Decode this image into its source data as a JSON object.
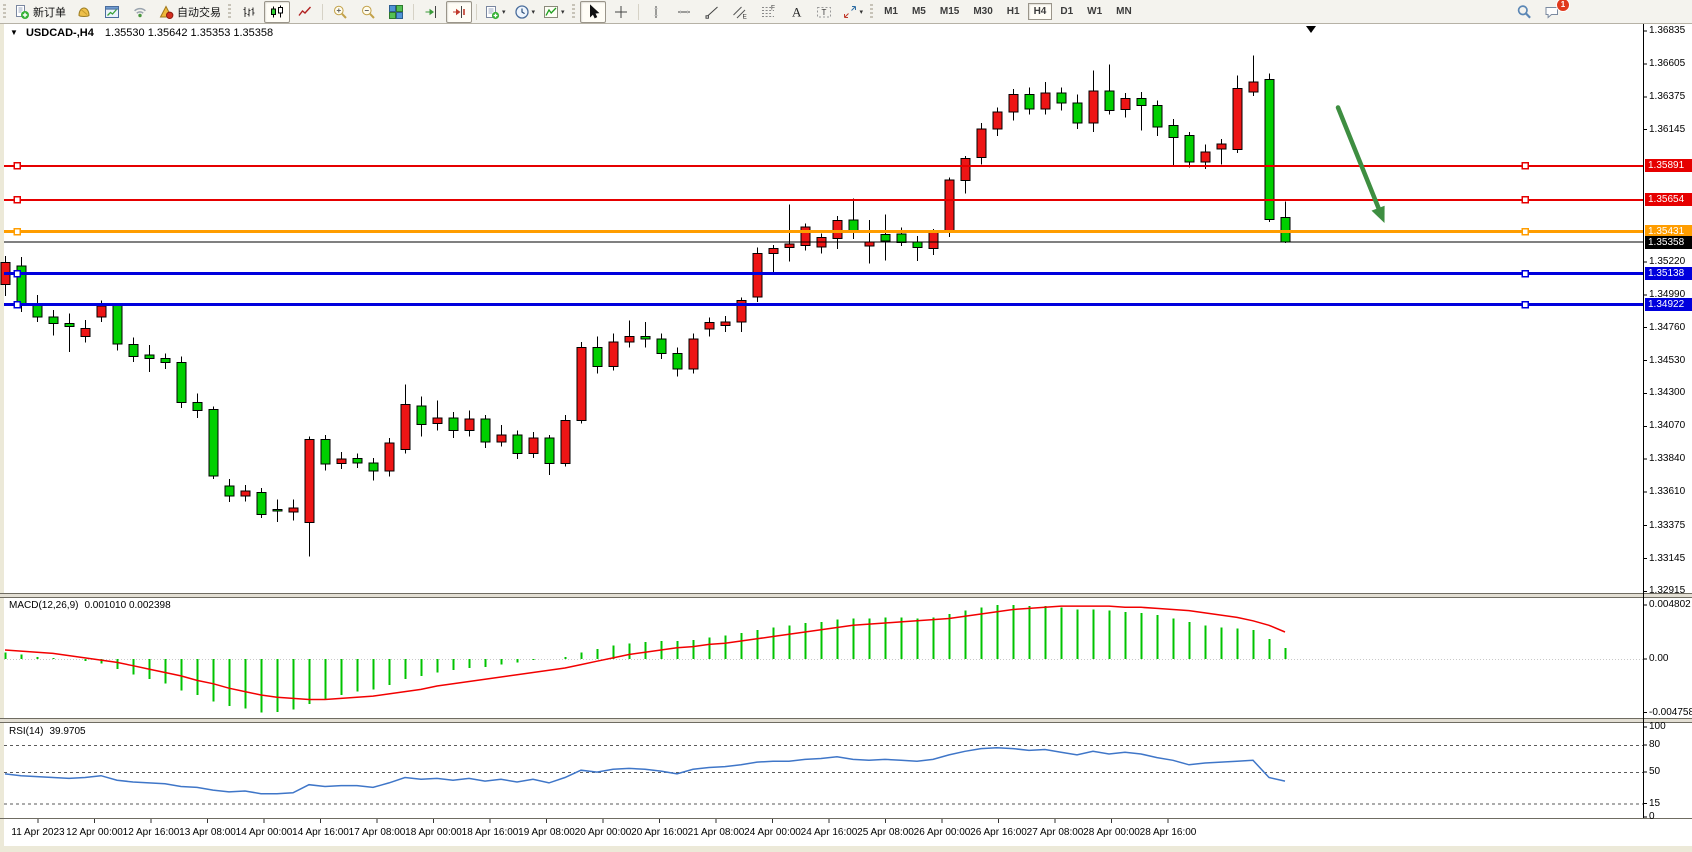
{
  "toolbar": {
    "groups": [
      {
        "items": [
          {
            "name": "new-order-button",
            "icon": "new-order",
            "label": "新订单"
          },
          {
            "name": "market-watch-button",
            "icon": "market-watch"
          },
          {
            "name": "new-chart-button",
            "icon": "new-chart"
          },
          {
            "name": "signals-button",
            "icon": "signals"
          },
          {
            "name": "autotrading-button",
            "icon": "autotrade",
            "label": "自动交易"
          }
        ]
      },
      {
        "items": [
          {
            "name": "bar-chart-button",
            "icon": "bars"
          },
          {
            "name": "candle-chart-button",
            "icon": "candles",
            "pressed": true
          },
          {
            "name": "line-chart-button",
            "icon": "line-chart"
          }
        ]
      },
      {
        "items": [
          {
            "name": "zoom-in-button",
            "icon": "zoom-in"
          },
          {
            "name": "zoom-out-button",
            "icon": "zoom-out"
          },
          {
            "name": "tile-windows-button",
            "icon": "tile"
          }
        ]
      },
      {
        "items": [
          {
            "name": "auto-scroll-button",
            "icon": "auto-scroll"
          },
          {
            "name": "chart-shift-button",
            "icon": "chart-shift",
            "pressed": true
          }
        ]
      },
      {
        "items": [
          {
            "name": "new-order-menu-button",
            "icon": "order-dd",
            "caret": true
          },
          {
            "name": "periods-menu-button",
            "icon": "periods",
            "caret": true
          },
          {
            "name": "indicators-menu-button",
            "icon": "indicators",
            "caret": true
          }
        ]
      },
      {
        "items": [
          {
            "name": "cursor-button",
            "icon": "cursor",
            "pressed": true
          },
          {
            "name": "crosshair-button",
            "icon": "crosshair"
          }
        ]
      },
      {
        "items": [
          {
            "name": "vertical-line-button",
            "icon": "vline"
          },
          {
            "name": "horizontal-line-button",
            "icon": "hline"
          },
          {
            "name": "trendline-button",
            "icon": "trendline"
          },
          {
            "name": "equidistant-channel-button",
            "icon": "channel"
          },
          {
            "name": "fibonacci-button",
            "icon": "fibo"
          },
          {
            "name": "text-button",
            "icon": "text-tool"
          },
          {
            "name": "text-label-button",
            "icon": "label-tool"
          },
          {
            "name": "arrows-button",
            "icon": "shapes",
            "caret": true
          }
        ]
      }
    ],
    "timeframes": [
      {
        "label": "M1"
      },
      {
        "label": "M5"
      },
      {
        "label": "M15"
      },
      {
        "label": "M30"
      },
      {
        "label": "H1"
      },
      {
        "label": "H4",
        "active": true
      },
      {
        "label": "D1"
      },
      {
        "label": "W1"
      },
      {
        "label": "MN"
      }
    ],
    "right": [
      {
        "name": "search-button",
        "icon": "search"
      },
      {
        "name": "notifications-button",
        "icon": "chat",
        "badge": "1"
      }
    ]
  },
  "chart": {
    "title": {
      "symbol": "USDCAD-,H4",
      "open": "1.35530",
      "high": "1.35642",
      "low": "1.35353",
      "close": "1.35358"
    }
  },
  "indicators": {
    "macd": {
      "label": "MACD(12,26,9)",
      "main_value": "0.001010",
      "signal_value": "0.002398"
    },
    "rsi": {
      "label": "RSI(14)",
      "value": "39.9705"
    }
  },
  "axes": {
    "price_ticks": [
      "1.36835",
      "1.36605",
      "1.36375",
      "1.36145",
      "1.35220",
      "1.34990",
      "1.34760",
      "1.34530",
      "1.34300",
      "1.34070",
      "1.33840",
      "1.33610",
      "1.33375",
      "1.33145",
      "1.32915"
    ],
    "price_tags": [
      {
        "text": "1.35891",
        "color": "#e60000"
      },
      {
        "text": "1.35654",
        "color": "#e60000"
      },
      {
        "text": "1.35431",
        "color": "#ff9d00"
      },
      {
        "text": "1.35358",
        "color": "#000000"
      },
      {
        "text": "1.35138",
        "color": "#0000dd"
      },
      {
        "text": "1.34922",
        "color": "#0000dd"
      }
    ],
    "macd_ticks": [
      {
        "text": "0.004802",
        "v": 0.004802
      },
      {
        "text": "0.00",
        "v": 0
      },
      {
        "text": "-0.004758",
        "v": -0.004758
      }
    ],
    "rsi_ticks": [
      {
        "text": "100",
        "v": 100
      },
      {
        "text": "80",
        "v": 80
      },
      {
        "text": "50",
        "v": 50
      },
      {
        "text": "15",
        "v": 15
      },
      {
        "text": "0",
        "v": 0
      }
    ],
    "time_labels": [
      "11 Apr 2023",
      "12 Apr 00:00",
      "12 Apr 16:00",
      "13 Apr 08:00",
      "14 Apr 00:00",
      "14 Apr 16:00",
      "17 Apr 08:00",
      "18 Apr 00:00",
      "18 Apr 16:00",
      "19 Apr 08:00",
      "20 Apr 00:00",
      "20 Apr 16:00",
      "21 Apr 08:00",
      "24 Apr 00:00",
      "24 Apr 16:00",
      "25 Apr 08:00",
      "26 Apr 00:00",
      "26 Apr 16:00",
      "27 Apr 08:00",
      "28 Apr 00:00",
      "28 Apr 16:00"
    ]
  },
  "chart_data": {
    "type": "candlestick",
    "symbol": "USDCAD",
    "timeframe": "H4",
    "title": "USDCAD-,H4  1.35530 1.35642 1.35353 1.35358",
    "up_color": "#ee1515",
    "down_color": "#00cf00",
    "ylim": [
      1.32915,
      1.36835
    ],
    "x_time_labels": [
      "11 Apr 2023",
      "12 Apr 00:00",
      "12 Apr 16:00",
      "13 Apr 08:00",
      "14 Apr 00:00",
      "14 Apr 16:00",
      "17 Apr 08:00",
      "18 Apr 00:00",
      "18 Apr 16:00",
      "19 Apr 08:00",
      "20 Apr 00:00",
      "20 Apr 16:00",
      "21 Apr 08:00",
      "24 Apr 00:00",
      "24 Apr 16:00",
      "25 Apr 08:00",
      "26 Apr 00:00",
      "26 Apr 16:00",
      "27 Apr 08:00",
      "28 Apr 00:00",
      "28 Apr 16:00"
    ],
    "candles_ohlc": [
      [
        1.35063,
        1.3526,
        1.3498,
        1.35217
      ],
      [
        1.3519,
        1.35255,
        1.3487,
        1.34925
      ],
      [
        1.3492,
        1.3499,
        1.348,
        1.34835
      ],
      [
        1.34835,
        1.34885,
        1.34705,
        1.3479
      ],
      [
        1.3479,
        1.3486,
        1.3459,
        1.34768
      ],
      [
        1.347,
        1.34815,
        1.34655,
        1.34755
      ],
      [
        1.34835,
        1.3495,
        1.348,
        1.34912
      ],
      [
        1.34915,
        1.3493,
        1.346,
        1.34645
      ],
      [
        1.34643,
        1.3469,
        1.3452,
        1.3456
      ],
      [
        1.3457,
        1.3464,
        1.3445,
        1.34545
      ],
      [
        1.34545,
        1.3458,
        1.3447,
        1.34515
      ],
      [
        1.34518,
        1.3456,
        1.342,
        1.34238
      ],
      [
        1.34238,
        1.343,
        1.3413,
        1.3418
      ],
      [
        1.34189,
        1.3421,
        1.337,
        1.33723
      ],
      [
        1.33652,
        1.337,
        1.3354,
        1.33582
      ],
      [
        1.33582,
        1.3366,
        1.33545,
        1.33617
      ],
      [
        1.33608,
        1.3364,
        1.3343,
        1.33454
      ],
      [
        1.3349,
        1.3356,
        1.334,
        1.3348
      ],
      [
        1.3347,
        1.3356,
        1.3341,
        1.335
      ],
      [
        1.33396,
        1.34,
        1.3316,
        1.33979
      ],
      [
        1.33979,
        1.3401,
        1.3376,
        1.33805
      ],
      [
        1.3381,
        1.3389,
        1.3377,
        1.3384
      ],
      [
        1.33845,
        1.3388,
        1.3378,
        1.33815
      ],
      [
        1.33815,
        1.3385,
        1.3369,
        1.33757
      ],
      [
        1.33757,
        1.3399,
        1.3372,
        1.33955
      ],
      [
        1.33909,
        1.34364,
        1.3388,
        1.34224
      ],
      [
        1.34212,
        1.3428,
        1.34,
        1.34084
      ],
      [
        1.3409,
        1.3425,
        1.3404,
        1.3413
      ],
      [
        1.3413,
        1.3417,
        1.3399,
        1.3404
      ],
      [
        1.3404,
        1.3418,
        1.34,
        1.3412
      ],
      [
        1.3412,
        1.3415,
        1.3392,
        1.3396
      ],
      [
        1.3396,
        1.3408,
        1.3393,
        1.3401
      ],
      [
        1.3401,
        1.3404,
        1.3384,
        1.3388
      ],
      [
        1.3388,
        1.3403,
        1.3385,
        1.3399
      ],
      [
        1.3399,
        1.3401,
        1.3373,
        1.3381
      ],
      [
        1.3381,
        1.3415,
        1.3379,
        1.3411
      ],
      [
        1.3411,
        1.3466,
        1.3409,
        1.3462
      ],
      [
        1.3462,
        1.347,
        1.3444,
        1.3449
      ],
      [
        1.3449,
        1.3472,
        1.3446,
        1.3466
      ],
      [
        1.3466,
        1.3481,
        1.3462,
        1.347
      ],
      [
        1.347,
        1.348,
        1.3462,
        1.3468
      ],
      [
        1.3468,
        1.3472,
        1.3454,
        1.3458
      ],
      [
        1.3458,
        1.3462,
        1.3442,
        1.3447
      ],
      [
        1.3447,
        1.3472,
        1.3444,
        1.3468
      ],
      [
        1.3475,
        1.3483,
        1.347,
        1.34797
      ],
      [
        1.34775,
        1.3484,
        1.3473,
        1.348
      ],
      [
        1.348,
        1.3497,
        1.3473,
        1.34951
      ],
      [
        1.34975,
        1.3532,
        1.3494,
        1.35278
      ],
      [
        1.35278,
        1.3534,
        1.3514,
        1.35313
      ],
      [
        1.3532,
        1.3562,
        1.35224,
        1.35345
      ],
      [
        1.35336,
        1.3549,
        1.353,
        1.35464
      ],
      [
        1.35324,
        1.3542,
        1.3528,
        1.3539
      ],
      [
        1.35383,
        1.3554,
        1.3531,
        1.35511
      ],
      [
        1.35512,
        1.35664,
        1.3538,
        1.3543
      ],
      [
        1.3533,
        1.35512,
        1.3521,
        1.35358
      ],
      [
        1.3541,
        1.3555,
        1.3523,
        1.35365
      ],
      [
        1.35416,
        1.3546,
        1.3533,
        1.35355
      ],
      [
        1.3536,
        1.354,
        1.35225,
        1.3532
      ],
      [
        1.35315,
        1.3545,
        1.3527,
        1.35425
      ],
      [
        1.35432,
        1.3581,
        1.35395,
        1.35793
      ],
      [
        1.3579,
        1.3596,
        1.357,
        1.35943
      ],
      [
        1.3595,
        1.3619,
        1.359,
        1.3615
      ],
      [
        1.3615,
        1.363,
        1.361,
        1.3627
      ],
      [
        1.3627,
        1.3643,
        1.3621,
        1.3639
      ],
      [
        1.3639,
        1.3644,
        1.3625,
        1.3629
      ],
      [
        1.3629,
        1.3648,
        1.3625,
        1.364
      ],
      [
        1.364,
        1.3644,
        1.3628,
        1.3633
      ],
      [
        1.3633,
        1.3639,
        1.3615,
        1.3619
      ],
      [
        1.3619,
        1.3656,
        1.3613,
        1.36415
      ],
      [
        1.36415,
        1.366,
        1.3625,
        1.3628
      ],
      [
        1.36286,
        1.364,
        1.3623,
        1.36363
      ],
      [
        1.36363,
        1.3641,
        1.3614,
        1.36315
      ],
      [
        1.36315,
        1.3635,
        1.361,
        1.36163
      ],
      [
        1.36175,
        1.3622,
        1.35884,
        1.3609
      ],
      [
        1.36105,
        1.3613,
        1.3588,
        1.35919
      ],
      [
        1.35919,
        1.3604,
        1.3587,
        1.35989
      ],
      [
        1.36008,
        1.3608,
        1.359,
        1.36043
      ],
      [
        1.36006,
        1.36525,
        1.3598,
        1.36432
      ],
      [
        1.36407,
        1.36665,
        1.3638,
        1.36478
      ],
      [
        1.36495,
        1.36537,
        1.355,
        1.35516
      ],
      [
        1.3553,
        1.35642,
        1.35353,
        1.35358
      ]
    ],
    "levels": [
      {
        "price": 1.35891,
        "color": "#e60000",
        "width": 2,
        "handles": true
      },
      {
        "price": 1.35654,
        "color": "#e60000",
        "width": 2,
        "handles": true
      },
      {
        "price": 1.35431,
        "color": "#ff9d00",
        "width": 3,
        "handles": true
      },
      {
        "price": 1.35358,
        "color": "#000000",
        "width": 1,
        "handles": false
      },
      {
        "price": 1.35138,
        "color": "#0000dd",
        "width": 3,
        "handles": true
      },
      {
        "price": 1.34922,
        "color": "#0000dd",
        "width": 3,
        "handles": true
      }
    ],
    "macd": {
      "params": [
        12,
        26,
        9
      ],
      "range": [
        -0.004758,
        0.004802
      ],
      "last_main": 0.00101,
      "last_signal": 0.002398,
      "main": [
        0.0006,
        0.0004,
        0.0002,
        0.0001,
        0.0,
        -0.0002,
        -0.0004,
        -0.0009,
        -0.0014,
        -0.0018,
        -0.0022,
        -0.0028,
        -0.0032,
        -0.0038,
        -0.0042,
        -0.0044,
        -0.004758,
        -0.0047,
        -0.0045,
        -0.004,
        -0.0036,
        -0.0032,
        -0.0029,
        -0.0027,
        -0.0023,
        -0.0018,
        -0.0015,
        -0.0012,
        -0.001,
        -0.0008,
        -0.0007,
        -0.0005,
        -0.0003,
        -0.0001,
        0.0,
        0.0002,
        0.0006,
        0.0009,
        0.0012,
        0.0014,
        0.0015,
        0.0016,
        0.0016,
        0.0017,
        0.0019,
        0.0021,
        0.0023,
        0.0026,
        0.0028,
        0.003,
        0.0032,
        0.0033,
        0.0035,
        0.0036,
        0.0036,
        0.0037,
        0.0037,
        0.0036,
        0.0037,
        0.004,
        0.0043,
        0.0046,
        0.0048,
        0.004802,
        0.0047,
        0.0047,
        0.0046,
        0.0044,
        0.0044,
        0.0043,
        0.0042,
        0.0041,
        0.0039,
        0.0036,
        0.0033,
        0.003,
        0.0028,
        0.0027,
        0.0026,
        0.0018,
        0.001
      ],
      "signal": [
        0.0008,
        0.0007,
        0.0006,
        0.0005,
        0.0003,
        0.0001,
        -0.0001,
        -0.0003,
        -0.0006,
        -0.0009,
        -0.0012,
        -0.0015,
        -0.0019,
        -0.0022,
        -0.0026,
        -0.0029,
        -0.0032,
        -0.0034,
        -0.0035,
        -0.0036,
        -0.0036,
        -0.0035,
        -0.0034,
        -0.0033,
        -0.0031,
        -0.0029,
        -0.0027,
        -0.0024,
        -0.0022,
        -0.002,
        -0.0018,
        -0.0016,
        -0.0014,
        -0.0012,
        -0.001,
        -0.0008,
        -0.0005,
        -0.0002,
        0.0001,
        0.0004,
        0.0006,
        0.0008,
        0.001,
        0.0011,
        0.0013,
        0.0014,
        0.0016,
        0.0018,
        0.002,
        0.0022,
        0.0024,
        0.0026,
        0.0028,
        0.003,
        0.0031,
        0.0032,
        0.0033,
        0.0034,
        0.0035,
        0.0036,
        0.0038,
        0.004,
        0.0042,
        0.0044,
        0.0045,
        0.0046,
        0.0047,
        0.0047,
        0.0047,
        0.0047,
        0.0046,
        0.0046,
        0.0045,
        0.0044,
        0.0043,
        0.0041,
        0.0039,
        0.0037,
        0.0034,
        0.003,
        0.0024
      ]
    },
    "rsi": {
      "period": 14,
      "range": [
        0,
        100
      ],
      "levels": [
        80,
        50,
        15
      ],
      "last": 39.9705,
      "values": [
        48,
        46,
        45,
        44,
        43,
        44,
        46,
        41,
        39,
        38,
        37,
        34,
        33,
        30,
        28,
        29,
        26,
        26,
        27,
        36,
        34,
        35,
        35,
        33,
        38,
        44,
        42,
        43,
        41,
        43,
        40,
        42,
        39,
        42,
        38,
        44,
        52,
        50,
        53,
        54,
        53,
        51,
        48,
        53,
        55,
        56,
        58,
        61,
        62,
        62,
        64,
        65,
        67,
        64,
        63,
        64,
        63,
        62,
        64,
        69,
        73,
        76,
        77,
        76,
        74,
        75,
        72,
        69,
        73,
        70,
        72,
        70,
        66,
        63,
        58,
        60,
        61,
        62,
        63,
        44,
        39.97
      ]
    },
    "annotations": [
      {
        "type": "arrow",
        "direction": "down",
        "color": "#3e8e41",
        "from_price": 1.363,
        "to_price": 1.3555,
        "location": "empty right margin after last candle"
      }
    ]
  }
}
